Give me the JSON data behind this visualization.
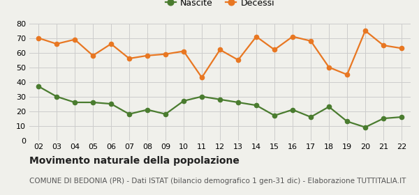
{
  "years": [
    "02",
    "03",
    "04",
    "05",
    "06",
    "07",
    "08",
    "09",
    "10",
    "11",
    "12",
    "13",
    "14",
    "15",
    "16",
    "17",
    "18",
    "19",
    "20",
    "21",
    "22"
  ],
  "nascite": [
    37,
    30,
    26,
    26,
    25,
    18,
    21,
    18,
    27,
    30,
    28,
    26,
    24,
    17,
    21,
    16,
    23,
    13,
    9,
    15,
    16
  ],
  "decessi": [
    70,
    66,
    69,
    58,
    66,
    56,
    58,
    59,
    61,
    43,
    62,
    55,
    71,
    62,
    71,
    68,
    50,
    45,
    75,
    65,
    63
  ],
  "nascite_color": "#4a7c2f",
  "decessi_color": "#e87722",
  "background_color": "#f0f0eb",
  "grid_color": "#cccccc",
  "ylim": [
    0,
    80
  ],
  "yticks": [
    0,
    10,
    20,
    30,
    40,
    50,
    60,
    70,
    80
  ],
  "title": "Movimento naturale della popolazione",
  "subtitle": "COMUNE DI BEDONIA (PR) - Dati ISTAT (bilancio demografico 1 gen-31 dic) - Elaborazione TUTTITALIA.IT",
  "legend_nascite": "Nascite",
  "legend_decessi": "Decessi",
  "title_fontsize": 10,
  "subtitle_fontsize": 7.5,
  "tick_fontsize": 8,
  "legend_fontsize": 9,
  "marker_size": 4.5,
  "line_width": 1.6
}
